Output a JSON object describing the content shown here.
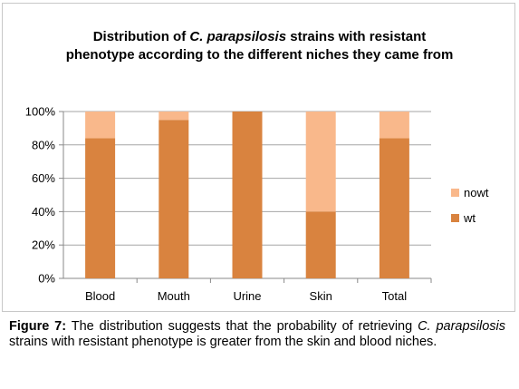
{
  "chart_data": {
    "type": "bar",
    "stacked": true,
    "title_parts": [
      "Distribution of ",
      "C. parapsilosis",
      " strains with resistant",
      "phenotype according to the different niches they came from"
    ],
    "categories": [
      "Blood",
      "Mouth",
      "Urine",
      "Skin",
      "Total"
    ],
    "series": [
      {
        "name": "wt",
        "values": [
          84,
          95,
          100,
          40,
          84
        ],
        "color": "#d9833f"
      },
      {
        "name": "nowt",
        "values": [
          16,
          5,
          0,
          60,
          16
        ],
        "color": "#f9b88b"
      }
    ],
    "ylim": [
      0,
      100
    ],
    "yticks": [
      "0%",
      "20%",
      "40%",
      "60%",
      "80%",
      "100%"
    ],
    "ytick_values": [
      0,
      20,
      40,
      60,
      80,
      100
    ],
    "grid": true,
    "legend_order": [
      "nowt",
      "wt"
    ],
    "legend_position": "right"
  },
  "caption": {
    "label": "Figure 7:",
    "text_1": " The distribution suggests that the probability of retrieving ",
    "italic": "C. parapsilosis",
    "text_2": " strains with resistant phenotype is greater from the skin and blood niches."
  }
}
